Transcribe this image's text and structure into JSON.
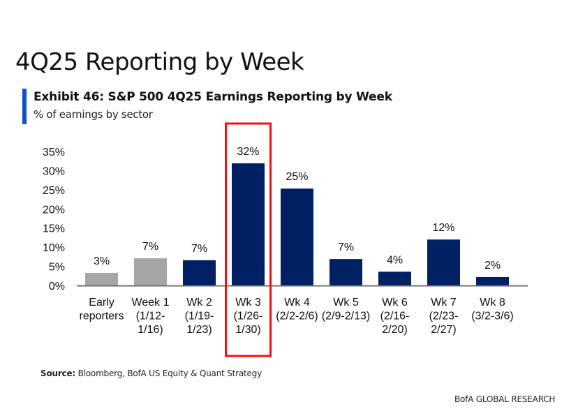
{
  "page": {
    "title": "4Q25 Reporting by Week",
    "exhibit_title": "Exhibit 46: S&P 500 4Q25 Earnings Reporting by Week",
    "exhibit_subtitle": "% of earnings by sector",
    "source_label": "Source:",
    "source_text": " Bloomberg, BofA US Equity & Quant Strategy",
    "footer": "BofA GLOBAL RESEARCH"
  },
  "colors": {
    "accent": "#0a52c8",
    "bar_primary": "#002063",
    "bar_secondary": "#a6a6a6",
    "axis": "#6f6f6f",
    "highlight_box": "#ee1111"
  },
  "chart_data": {
    "type": "bar",
    "title": "Exhibit 46: S&P 500 4Q25 Earnings Reporting by Week",
    "subtitle": "% of earnings by sector",
    "xlabel": "",
    "ylabel": "",
    "ylim": [
      0,
      35
    ],
    "yticks": [
      0,
      5,
      10,
      15,
      20,
      25,
      30,
      35
    ],
    "ytick_labels": [
      "0%",
      "5%",
      "10%",
      "15%",
      "20%",
      "25%",
      "30%",
      "35%"
    ],
    "grid": false,
    "legend": "none",
    "categories": [
      [
        "Early",
        "reporters"
      ],
      [
        "Week 1",
        "(1/12-",
        "1/16)"
      ],
      [
        "Wk 2",
        "(1/19-",
        "1/23)"
      ],
      [
        "Wk 3",
        "(1/26-",
        "1/30)"
      ],
      [
        "Wk 4",
        "(2/2-2/6)"
      ],
      [
        "Wk 5",
        "(2/9-2/13)"
      ],
      [
        "Wk 6",
        "(2/16-",
        "2/20)"
      ],
      [
        "Wk 7",
        "(2/23-",
        "2/27)"
      ],
      [
        "Wk 8",
        "(3/2-3/6)"
      ]
    ],
    "values": [
      3.3,
      7.1,
      6.6,
      31.9,
      25.3,
      6.9,
      3.6,
      12.0,
      2.2
    ],
    "data_labels": [
      "3%",
      "7%",
      "7%",
      "32%",
      "25%",
      "7%",
      "4%",
      "12%",
      "2%"
    ],
    "bar_style": [
      "secondary",
      "secondary",
      "primary",
      "primary",
      "primary",
      "primary",
      "primary",
      "primary",
      "primary"
    ],
    "highlighted_category_index": 3,
    "annotation": "Red box highlighting Wk 3 (1/26-1/30)"
  }
}
